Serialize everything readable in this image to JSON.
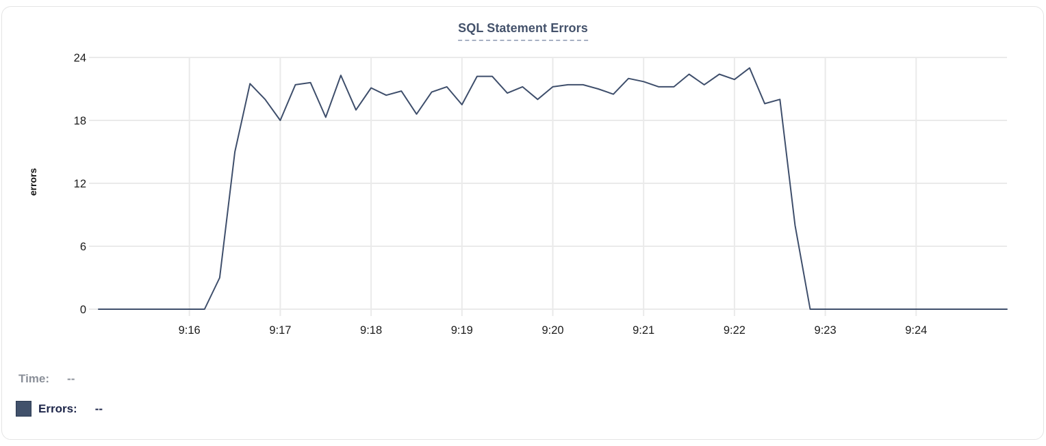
{
  "card": {
    "title": "SQL Statement Errors"
  },
  "y_axis": {
    "title": "errors"
  },
  "readout": {
    "time_label": "Time:",
    "time_value": "--",
    "errors_label": "Errors:",
    "errors_value": "--",
    "swatch_color": "#41516b"
  },
  "colors": {
    "line": "#3e4e6b",
    "grid": "#eaeaea",
    "title_text": "#44526b",
    "title_underline": "#a6b0c3",
    "tick_text": "#1b1b1b",
    "time_text": "#8a8f98",
    "errors_text": "#1c2448",
    "card_border": "#e4e4e4"
  },
  "chart_data": {
    "type": "line",
    "title": "SQL Statement Errors",
    "xlabel": "",
    "ylabel": "errors",
    "ylim": [
      0,
      24
    ],
    "yticks": [
      0,
      6,
      12,
      18,
      24
    ],
    "xtick_labels": [
      "9:16",
      "9:17",
      "9:18",
      "9:19",
      "9:20",
      "9:21",
      "9:22",
      "9:23",
      "9:24"
    ],
    "grid": true,
    "legend_position": "none",
    "interval_seconds": 10,
    "series": [
      {
        "name": "Errors",
        "color": "#3e4e6b",
        "x": [
          "9:15:00",
          "9:15:10",
          "9:15:20",
          "9:15:30",
          "9:15:40",
          "9:15:50",
          "9:16:00",
          "9:16:10",
          "9:16:20",
          "9:16:30",
          "9:16:40",
          "9:16:50",
          "9:17:00",
          "9:17:10",
          "9:17:20",
          "9:17:30",
          "9:17:40",
          "9:17:50",
          "9:18:00",
          "9:18:10",
          "9:18:20",
          "9:18:30",
          "9:18:40",
          "9:18:50",
          "9:19:00",
          "9:19:10",
          "9:19:20",
          "9:19:30",
          "9:19:40",
          "9:19:50",
          "9:20:00",
          "9:20:10",
          "9:20:20",
          "9:20:30",
          "9:20:40",
          "9:20:50",
          "9:21:00",
          "9:21:10",
          "9:21:20",
          "9:21:30",
          "9:21:40",
          "9:21:50",
          "9:22:00",
          "9:22:10",
          "9:22:20",
          "9:22:30",
          "9:22:40",
          "9:22:50",
          "9:23:00",
          "9:23:10",
          "9:23:20",
          "9:23:30",
          "9:23:40",
          "9:23:50",
          "9:24:00",
          "9:24:10",
          "9:24:20",
          "9:24:30",
          "9:24:40",
          "9:24:50",
          "9:25:00"
        ],
        "values": [
          0,
          0,
          0,
          0,
          0,
          0,
          0,
          0,
          3,
          15,
          21.5,
          20,
          18,
          21.4,
          21.6,
          18.3,
          22.3,
          19,
          21.1,
          20.4,
          20.8,
          18.6,
          20.7,
          21.2,
          19.5,
          22.2,
          22.2,
          20.6,
          21.2,
          20,
          21.2,
          21.4,
          21.4,
          21,
          20.5,
          22,
          21.7,
          21.2,
          21.2,
          22.4,
          21.4,
          22.4,
          21.9,
          23,
          19.6,
          20,
          8,
          0,
          0,
          0,
          0,
          0,
          0,
          0,
          0,
          0,
          0,
          0,
          0,
          0,
          0
        ]
      }
    ]
  }
}
